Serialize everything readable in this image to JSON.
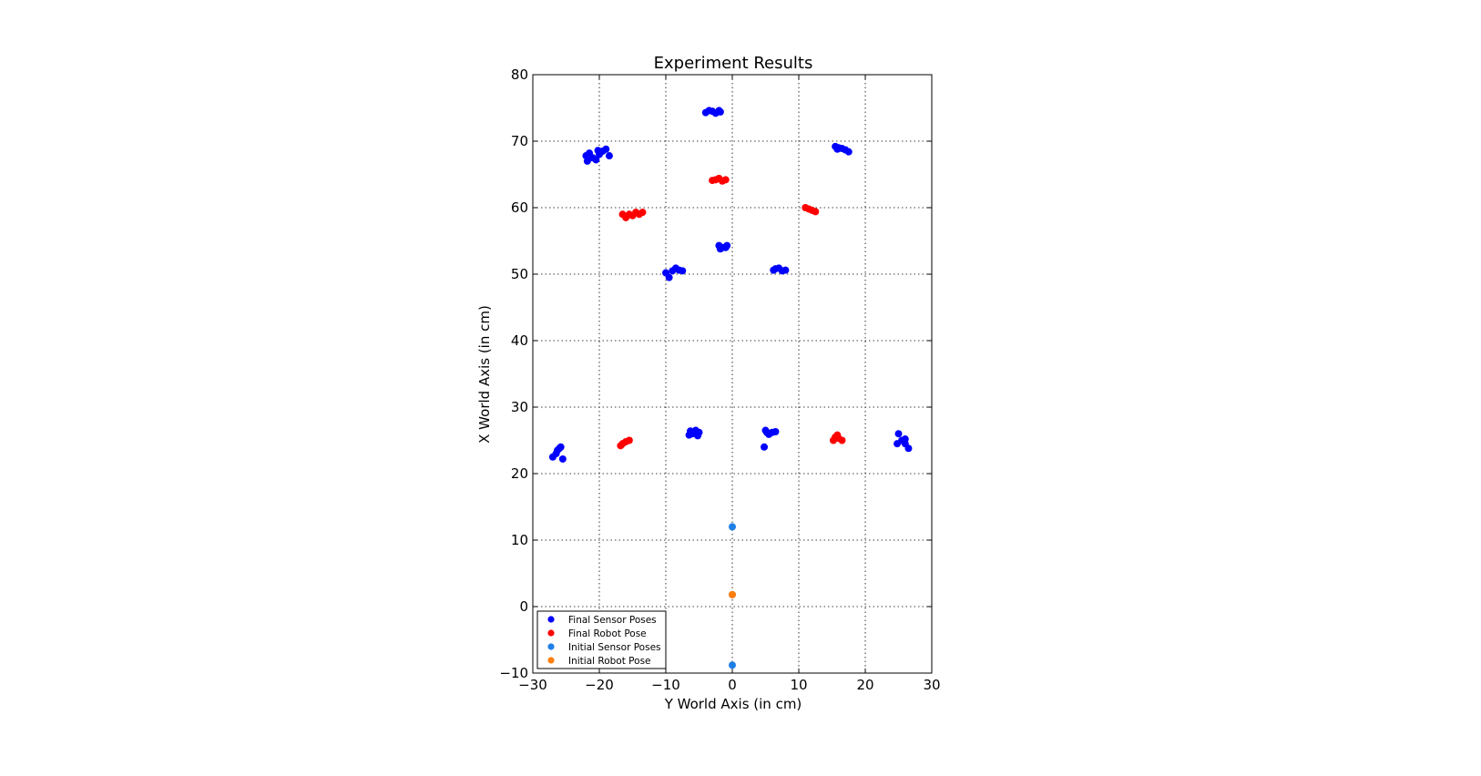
{
  "chart_data": {
    "type": "scatter",
    "title": "Experiment Results",
    "xlabel": "Y World Axis (in cm)",
    "ylabel": "X World Axis (in cm)",
    "xlim": [
      -30,
      30
    ],
    "ylim": [
      -10,
      80
    ],
    "xticks": [
      -30,
      -20,
      -10,
      0,
      10,
      20,
      30
    ],
    "yticks": [
      -10,
      0,
      10,
      20,
      30,
      40,
      50,
      60,
      70,
      80
    ],
    "xtick_labels": [
      "−30",
      "−20",
      "−10",
      "0",
      "10",
      "20",
      "30"
    ],
    "ytick_labels": [
      "−10",
      "0",
      "10",
      "20",
      "30",
      "40",
      "50",
      "60",
      "70",
      "80"
    ],
    "grid": true,
    "legend_position": "bottom-left",
    "series": [
      {
        "name": "Final Sensor Poses",
        "color": "#0000ff",
        "points": [
          [
            -20.0,
            68.0
          ],
          [
            -21.0,
            67.5
          ],
          [
            -22.0,
            67.8
          ],
          [
            -19.5,
            68.5
          ],
          [
            -20.5,
            67.2
          ],
          [
            -21.5,
            68.2
          ],
          [
            -19.0,
            68.8
          ],
          [
            -18.5,
            67.8
          ],
          [
            -21.8,
            67.0
          ],
          [
            -20.2,
            68.6
          ],
          [
            -3.0,
            74.5
          ],
          [
            -4.0,
            74.3
          ],
          [
            -2.0,
            74.6
          ],
          [
            -2.5,
            74.2
          ],
          [
            -3.5,
            74.6
          ],
          [
            -1.8,
            74.4
          ],
          [
            15.5,
            69.2
          ],
          [
            16.5,
            68.9
          ],
          [
            17.5,
            68.4
          ],
          [
            16.0,
            69.0
          ],
          [
            17.0,
            68.7
          ],
          [
            15.8,
            68.8
          ],
          [
            -1.5,
            54.0
          ],
          [
            -2.0,
            54.3
          ],
          [
            -1.0,
            54.0
          ],
          [
            -0.8,
            54.3
          ],
          [
            -1.8,
            53.8
          ],
          [
            -9.0,
            50.5
          ],
          [
            -10.0,
            50.2
          ],
          [
            -8.0,
            50.6
          ],
          [
            -9.5,
            49.5
          ],
          [
            -8.5,
            50.9
          ],
          [
            -7.5,
            50.5
          ],
          [
            6.5,
            50.8
          ],
          [
            7.5,
            50.5
          ],
          [
            7.0,
            50.9
          ],
          [
            8.0,
            50.6
          ],
          [
            6.2,
            50.6
          ],
          [
            -6.0,
            26.0
          ],
          [
            -5.0,
            26.2
          ],
          [
            -6.5,
            25.8
          ],
          [
            -5.5,
            26.5
          ],
          [
            -5.2,
            25.7
          ],
          [
            -6.3,
            26.4
          ],
          [
            5.0,
            26.5
          ],
          [
            6.0,
            26.2
          ],
          [
            5.5,
            25.9
          ],
          [
            6.5,
            26.3
          ],
          [
            5.2,
            26.2
          ],
          [
            4.8,
            24.0
          ],
          [
            -26.5,
            23.0
          ],
          [
            -26.0,
            23.8
          ],
          [
            -27.0,
            22.5
          ],
          [
            -25.5,
            22.2
          ],
          [
            -26.3,
            23.5
          ],
          [
            -25.8,
            24.0
          ],
          [
            25.0,
            26.0
          ],
          [
            25.5,
            25.0
          ],
          [
            26.0,
            24.5
          ],
          [
            26.5,
            23.8
          ],
          [
            24.8,
            24.5
          ],
          [
            26.0,
            25.2
          ]
        ]
      },
      {
        "name": "Final Robot Pose",
        "color": "#ff0000",
        "points": [
          [
            -15.5,
            59.0
          ],
          [
            -14.5,
            59.3
          ],
          [
            -16.0,
            58.5
          ],
          [
            -13.5,
            59.3
          ],
          [
            -15.0,
            58.8
          ],
          [
            -14.0,
            59.0
          ],
          [
            -16.5,
            59.0
          ],
          [
            -2.5,
            64.2
          ],
          [
            -1.5,
            64.0
          ],
          [
            -2.0,
            64.4
          ],
          [
            -1.0,
            64.2
          ],
          [
            -3.0,
            64.1
          ],
          [
            11.0,
            60.0
          ],
          [
            12.0,
            59.6
          ],
          [
            12.5,
            59.4
          ],
          [
            11.5,
            59.8
          ],
          [
            -16.5,
            24.5
          ],
          [
            -16.0,
            24.8
          ],
          [
            -15.5,
            25.0
          ],
          [
            -16.8,
            24.2
          ],
          [
            15.5,
            25.5
          ],
          [
            15.2,
            25.0
          ],
          [
            16.0,
            25.3
          ],
          [
            16.5,
            25.0
          ],
          [
            15.8,
            25.8
          ]
        ]
      },
      {
        "name": "Initial Sensor Poses",
        "color": "#1f7fe6",
        "points": [
          [
            0.0,
            12.0
          ],
          [
            0.0,
            -8.8
          ],
          [
            0.0,
            1.8
          ]
        ]
      },
      {
        "name": "Initial Robot Pose",
        "color": "#ff7f0e",
        "points": [
          [
            0.0,
            1.8
          ]
        ]
      }
    ]
  }
}
